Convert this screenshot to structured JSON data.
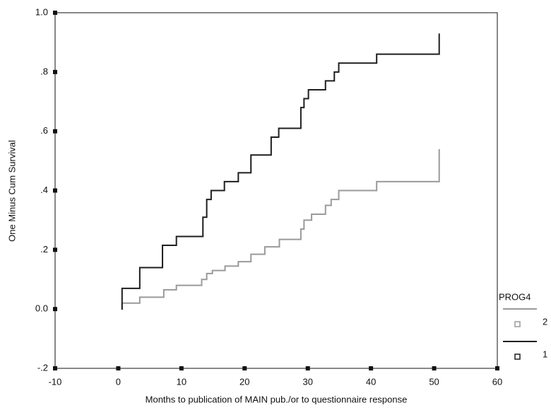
{
  "chart_data": {
    "type": "step",
    "xlabel": "Months to publication of MAIN pub./or to questionnaire response",
    "ylabel": "One Minus Cum Survival",
    "xlim": [
      -10,
      60
    ],
    "xticks": [
      -10,
      0,
      10,
      20,
      30,
      40,
      50,
      60
    ],
    "ylim": [
      -0.2,
      1.0
    ],
    "yticks": [
      {
        "value": -0.2,
        "label": "-.2"
      },
      {
        "value": 0,
        "label": "0.0"
      },
      {
        "value": 0.2,
        "label": ".2"
      },
      {
        "value": 0.4,
        "label": ".4"
      },
      {
        "value": 0.6,
        "label": ".6"
      },
      {
        "value": 0.8,
        "label": ".8"
      },
      {
        "value": 1.0,
        "label": "1.0"
      }
    ],
    "legend_title": "PROG4",
    "series": [
      {
        "name": "2",
        "color": "#9a9a9a",
        "x": [
          0.5,
          0.6,
          3.4,
          7.2,
          9.2,
          13.2,
          14,
          14.9,
          16.9,
          19,
          21,
          23.2,
          25.5,
          28.9,
          29.4,
          30.6,
          32.8,
          33.7,
          34.9,
          40.9,
          50.8,
          50.8
        ],
        "y": [
          0,
          0.02,
          0.04,
          0.065,
          0.08,
          0.1,
          0.12,
          0.13,
          0.145,
          0.16,
          0.185,
          0.21,
          0.235,
          0.27,
          0.3,
          0.32,
          0.35,
          0.37,
          0.4,
          0.43,
          0.43,
          0.54
        ]
      },
      {
        "name": "1",
        "color": "#1e1e1e",
        "x": [
          0.5,
          0.6,
          3.4,
          7,
          9.2,
          13.4,
          14,
          14.7,
          16.8,
          19,
          21,
          24.2,
          25.4,
          28.9,
          29.4,
          30.1,
          32.8,
          34.2,
          34.9,
          40.9,
          50.8,
          50.8
        ],
        "y": [
          0,
          0.07,
          0.14,
          0.215,
          0.245,
          0.31,
          0.37,
          0.4,
          0.43,
          0.46,
          0.52,
          0.58,
          0.61,
          0.68,
          0.71,
          0.74,
          0.77,
          0.8,
          0.83,
          0.86,
          0.86,
          0.93
        ]
      }
    ]
  }
}
